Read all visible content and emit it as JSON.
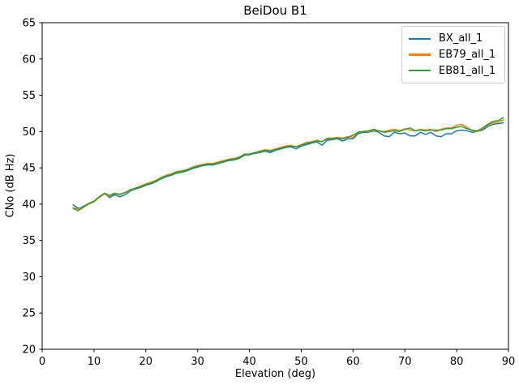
{
  "chart_data": {
    "type": "line",
    "title": "BeiDou B1",
    "xlabel": "Elevation (deg)",
    "ylabel": "CNo (dB Hz)",
    "xlim": [
      0,
      90
    ],
    "ylim": [
      20,
      65
    ],
    "xticks": [
      0,
      10,
      20,
      30,
      40,
      50,
      60,
      70,
      80,
      90
    ],
    "yticks": [
      20,
      25,
      30,
      35,
      40,
      45,
      50,
      55,
      60,
      65
    ],
    "grid": false,
    "legend_position": "upper right",
    "x": [
      6,
      7,
      8,
      9,
      10,
      11,
      12,
      13,
      14,
      15,
      16,
      17,
      18,
      19,
      20,
      21,
      22,
      23,
      24,
      25,
      26,
      27,
      28,
      29,
      30,
      31,
      32,
      33,
      34,
      35,
      36,
      37,
      38,
      39,
      40,
      41,
      42,
      43,
      44,
      45,
      46,
      47,
      48,
      49,
      50,
      51,
      52,
      53,
      54,
      55,
      56,
      57,
      58,
      59,
      60,
      61,
      62,
      63,
      64,
      65,
      66,
      67,
      68,
      69,
      70,
      71,
      72,
      73,
      74,
      75,
      76,
      77,
      78,
      79,
      80,
      81,
      82,
      83,
      84,
      85,
      86,
      87,
      88,
      89
    ],
    "series": [
      {
        "name": "BX_all_1",
        "color": "#1f77b4",
        "values": [
          39.9,
          39.4,
          39.7,
          40.1,
          40.4,
          41.0,
          41.5,
          40.9,
          41.3,
          41.0,
          41.3,
          41.8,
          42.1,
          42.3,
          42.6,
          42.8,
          43.1,
          43.5,
          43.8,
          44.0,
          44.3,
          44.4,
          44.6,
          44.9,
          45.1,
          45.3,
          45.4,
          45.4,
          45.6,
          45.8,
          46.0,
          46.1,
          46.3,
          46.7,
          46.8,
          47.0,
          47.1,
          47.3,
          47.1,
          47.4,
          47.6,
          47.8,
          47.9,
          47.6,
          48.0,
          48.2,
          48.4,
          48.6,
          48.1,
          48.8,
          48.9,
          49.0,
          48.7,
          49.0,
          49.0,
          49.7,
          49.9,
          49.9,
          50.1,
          49.9,
          49.4,
          49.3,
          49.9,
          49.7,
          49.8,
          49.4,
          49.4,
          49.9,
          49.6,
          49.9,
          49.4,
          49.3,
          49.7,
          49.7,
          50.1,
          50.2,
          50.1,
          49.9,
          50.0,
          50.2,
          50.7,
          51.0,
          51.1,
          51.2
        ]
      },
      {
        "name": "EB79_all_1",
        "color": "#ff7f0e",
        "values": [
          39.5,
          39.3,
          39.6,
          40.0,
          40.3,
          40.9,
          41.4,
          41.1,
          41.5,
          41.4,
          41.6,
          41.9,
          42.2,
          42.5,
          42.8,
          43.0,
          43.3,
          43.7,
          44.0,
          44.2,
          44.5,
          44.6,
          44.8,
          45.1,
          45.3,
          45.5,
          45.6,
          45.6,
          45.8,
          46.0,
          46.2,
          46.3,
          46.5,
          46.8,
          46.9,
          47.1,
          47.3,
          47.5,
          47.4,
          47.6,
          47.8,
          48.0,
          48.1,
          47.9,
          48.2,
          48.5,
          48.6,
          48.8,
          48.6,
          49.1,
          49.1,
          49.2,
          49.1,
          49.3,
          49.2,
          49.9,
          50.0,
          50.0,
          50.2,
          50.1,
          50.0,
          50.2,
          50.3,
          50.1,
          50.4,
          50.2,
          50.1,
          50.3,
          50.2,
          50.3,
          50.0,
          50.3,
          50.5,
          50.5,
          50.9,
          51.0,
          50.6,
          50.1,
          50.0,
          50.4,
          50.9,
          51.2,
          51.3,
          51.6
        ]
      },
      {
        "name": "EB81_all_1",
        "color": "#2ca02c",
        "values": [
          39.4,
          39.1,
          39.6,
          40.1,
          40.4,
          41.0,
          41.5,
          41.2,
          41.5,
          41.3,
          41.6,
          42.0,
          42.2,
          42.4,
          42.7,
          42.9,
          43.2,
          43.6,
          43.9,
          44.1,
          44.4,
          44.5,
          44.7,
          45.0,
          45.2,
          45.4,
          45.5,
          45.5,
          45.7,
          45.9,
          46.1,
          46.2,
          46.4,
          46.9,
          46.9,
          47.1,
          47.2,
          47.4,
          47.3,
          47.5,
          47.7,
          47.9,
          48.0,
          47.9,
          48.1,
          48.4,
          48.5,
          48.7,
          48.6,
          49.0,
          49.0,
          49.1,
          49.0,
          49.2,
          49.5,
          49.9,
          50.0,
          50.1,
          50.3,
          50.1,
          49.9,
          50.0,
          50.1,
          50.0,
          50.3,
          50.5,
          50.1,
          50.2,
          50.1,
          50.2,
          50.2,
          50.2,
          50.4,
          50.4,
          50.6,
          50.7,
          50.4,
          50.2,
          50.1,
          50.5,
          51.0,
          51.4,
          51.5,
          51.9
        ]
      }
    ],
    "axis_color": "#000000",
    "line_width": 1.5
  }
}
